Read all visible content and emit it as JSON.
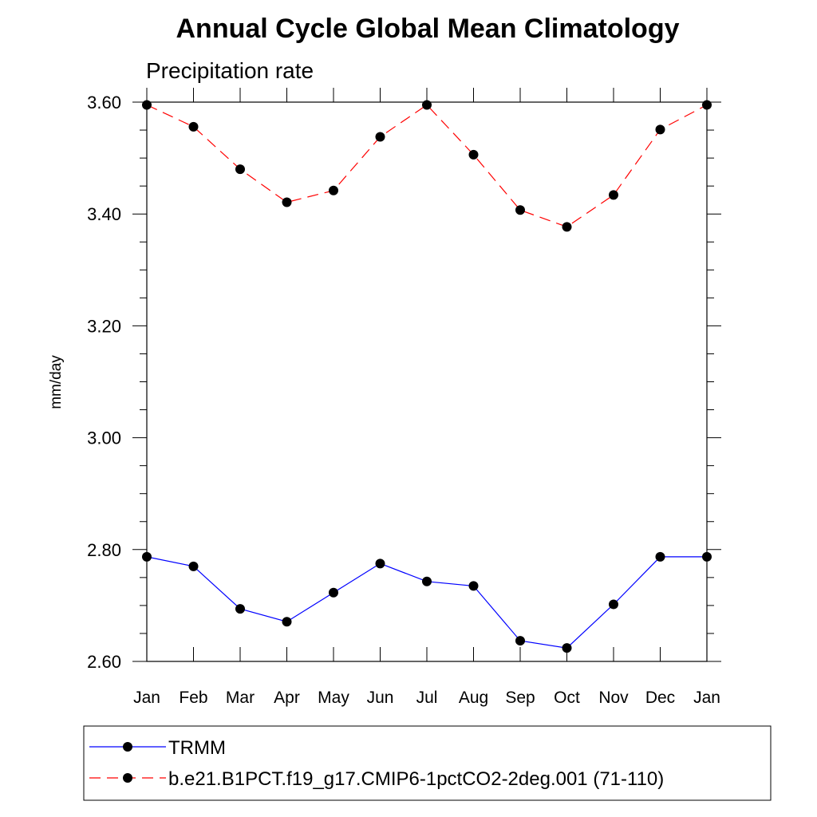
{
  "chart_data": {
    "type": "line",
    "title": "Annual Cycle Global Mean Climatology",
    "subtitle": "Precipitation rate",
    "xlabel": "",
    "ylabel": "mm/day",
    "categories": [
      "Jan",
      "Feb",
      "Mar",
      "Apr",
      "May",
      "Jun",
      "Jul",
      "Aug",
      "Sep",
      "Oct",
      "Nov",
      "Dec",
      "Jan"
    ],
    "ylim": [
      2.6,
      3.6
    ],
    "y_ticks": [
      2.6,
      2.8,
      3.0,
      3.2,
      3.4,
      3.6
    ],
    "y_tick_labels": [
      "2.60",
      "2.80",
      "3.00",
      "3.20",
      "3.40",
      "3.60"
    ],
    "y_minor_step": 0.05,
    "grid": false,
    "legend_position": "bottom",
    "series": [
      {
        "name": "TRMM",
        "color": "#0000ff",
        "line_style": "solid",
        "marker": "filled-circle",
        "values": [
          2.787,
          2.77,
          2.694,
          2.671,
          2.723,
          2.775,
          2.743,
          2.735,
          2.637,
          2.624,
          2.702,
          2.787,
          2.787
        ]
      },
      {
        "name": "b.e21.B1PCT.f19_g17.CMIP6-1pctCO2-2deg.001 (71-110)",
        "color": "#ff0000",
        "line_style": "dashed",
        "marker": "filled-circle",
        "values": [
          3.595,
          3.556,
          3.48,
          3.421,
          3.442,
          3.538,
          3.595,
          3.506,
          3.407,
          3.377,
          3.434,
          3.551,
          3.595
        ]
      }
    ]
  }
}
